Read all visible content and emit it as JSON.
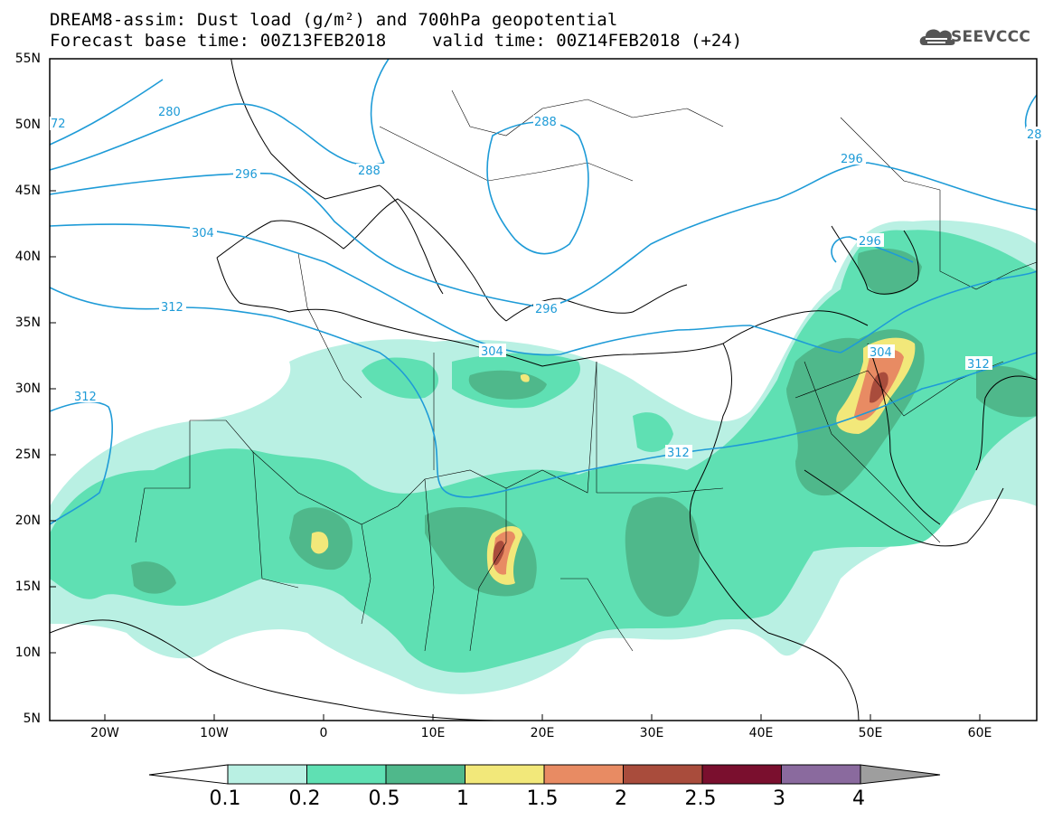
{
  "header": {
    "title_line1": "DREAM8-assim: Dust load (g/m²) and 700hPa geopotential",
    "title_line2": "Forecast base time: 00Z13FEB2018",
    "valid_time": "valid time: 00Z14FEB2018 (+24)",
    "logo_text": "SEEVCCC",
    "logo_icon": "cloud-logo-icon"
  },
  "map": {
    "lat_labels": [
      "55N",
      "50N",
      "45N",
      "40N",
      "35N",
      "30N",
      "25N",
      "20N",
      "15N",
      "10N",
      "5N"
    ],
    "lon_labels": [
      "20W",
      "10W",
      "0",
      "10E",
      "20E",
      "30E",
      "40E",
      "50E",
      "60E"
    ],
    "contour_labels": [
      "72",
      "280",
      "288",
      "288",
      "296",
      "296",
      "296",
      "304",
      "304",
      "312",
      "312",
      "312",
      "312",
      "28"
    ],
    "lat_range": [
      5,
      55
    ],
    "lon_range": [
      -25,
      65
    ]
  },
  "colorbar": {
    "levels": [
      "0.1",
      "0.2",
      "0.5",
      "1",
      "1.5",
      "2",
      "2.5",
      "3",
      "4"
    ],
    "colors": [
      "#b9f0e3",
      "#5fe0b3",
      "#4fb88b",
      "#f2e87a",
      "#e88b63",
      "#a94c3c",
      "#7a0f2e",
      "#8a6a9e",
      "#9e9e9e"
    ]
  }
}
